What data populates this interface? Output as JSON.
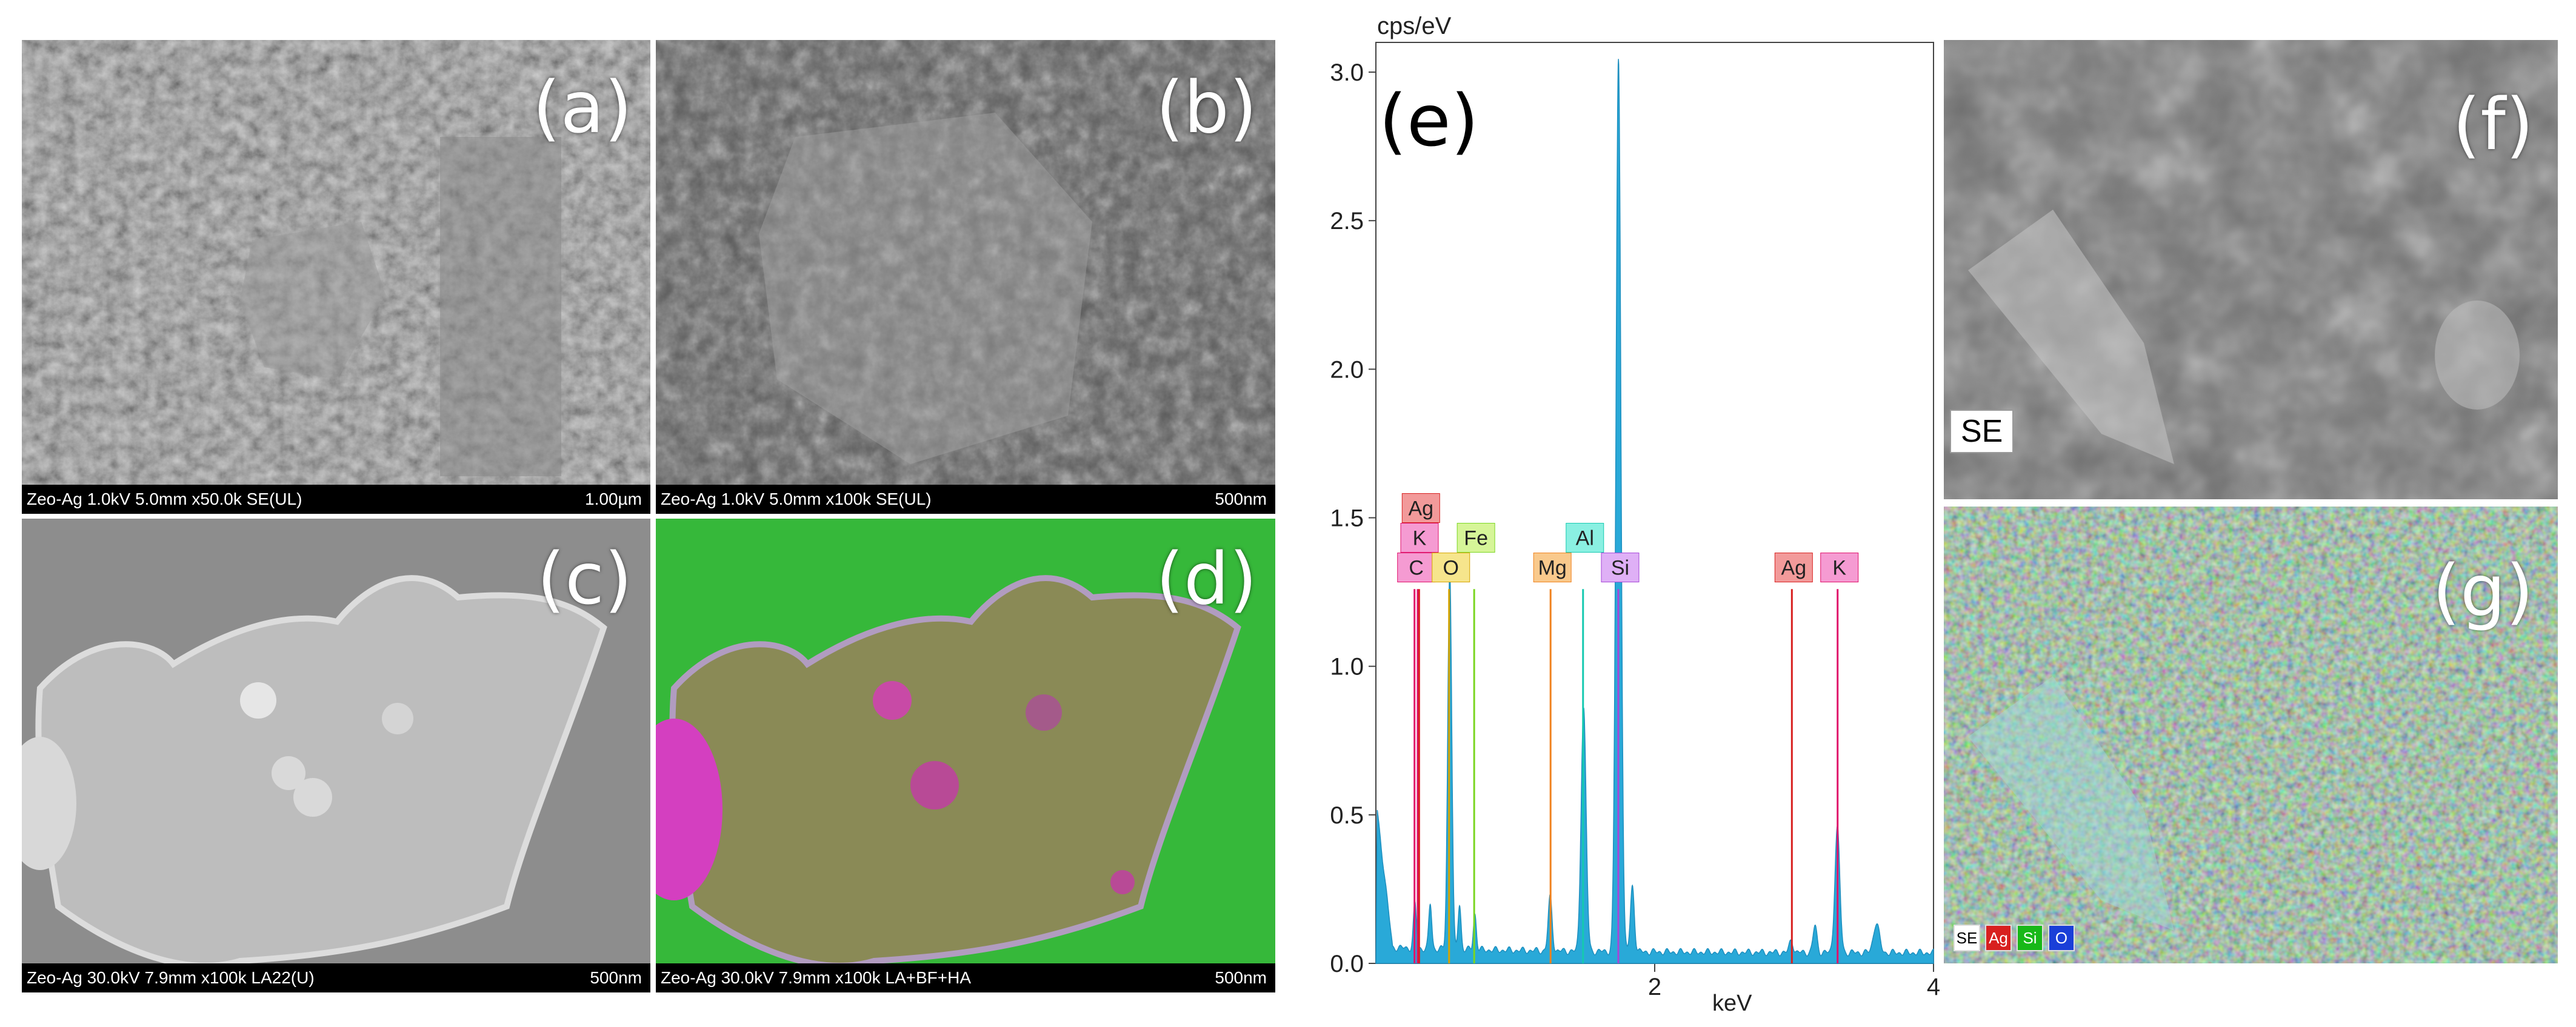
{
  "panels": {
    "a": {
      "label": "(a)",
      "info": "Zeo-Ag 1.0kV 5.0mm x50.0k SE(UL)",
      "scale": "1.00µm"
    },
    "b": {
      "label": "(b)",
      "info": "Zeo-Ag 1.0kV 5.0mm x100k SE(UL)",
      "scale": "500nm"
    },
    "c": {
      "label": "(c)",
      "info": "Zeo-Ag 30.0kV 7.9mm x100k LA22(U)",
      "scale": "500nm"
    },
    "d": {
      "label": "(d)",
      "info": "Zeo-Ag 30.0kV 7.9mm x100k LA+BF+HA",
      "scale": "500nm"
    },
    "e": {
      "label": "(e)"
    },
    "f": {
      "label": "(f)",
      "tag": "SE"
    },
    "g": {
      "label": "(g)",
      "legend": [
        {
          "text": "SE",
          "color": "#ffffff",
          "fg": "#000000"
        },
        {
          "text": "Ag",
          "color": "#d8201f",
          "fg": "#ffffff"
        },
        {
          "text": "Si",
          "color": "#18b818",
          "fg": "#ffffff"
        },
        {
          "text": "O",
          "color": "#1a3fd8",
          "fg": "#ffffff"
        }
      ]
    }
  },
  "chart_data": {
    "type": "line",
    "title": "",
    "xlabel": "keV",
    "ylabel": "cps/eV",
    "xlim": [
      0,
      4.0
    ],
    "ylim": [
      0,
      3.1
    ],
    "xticks": [
      2,
      4
    ],
    "yticks": [
      0.0,
      0.5,
      1.0,
      1.5,
      2.0,
      2.5,
      3.0
    ],
    "ytick_labels": [
      "0.0",
      "0.5",
      "1.0",
      "1.5",
      "2.0",
      "2.5",
      "3.0"
    ],
    "fill_color": "#29a9d8",
    "peaks": [
      {
        "x": 0.28,
        "y": 0.15,
        "w": 0.015
      },
      {
        "x": 0.39,
        "y": 0.15,
        "w": 0.015
      },
      {
        "x": 0.53,
        "y": 1.28,
        "w": 0.02
      },
      {
        "x": 0.6,
        "y": 0.15,
        "w": 0.015
      },
      {
        "x": 0.71,
        "y": 0.12,
        "w": 0.015
      },
      {
        "x": 1.25,
        "y": 0.18,
        "w": 0.02
      },
      {
        "x": 1.49,
        "y": 0.82,
        "w": 0.025
      },
      {
        "x": 1.74,
        "y": 3.0,
        "w": 0.025
      },
      {
        "x": 1.84,
        "y": 0.22,
        "w": 0.02
      },
      {
        "x": 2.98,
        "y": 0.04,
        "w": 0.02
      },
      {
        "x": 3.15,
        "y": 0.09,
        "w": 0.02
      },
      {
        "x": 3.31,
        "y": 0.42,
        "w": 0.025
      },
      {
        "x": 3.59,
        "y": 0.1,
        "w": 0.03
      }
    ],
    "element_markers": [
      {
        "element": "C",
        "x": 0.277,
        "height": 1.26,
        "color": "#e0106a",
        "box": "#f59bd2",
        "row": 0
      },
      {
        "element": "K",
        "x": 0.3,
        "height": 1.26,
        "color": "#e0106a",
        "box": "#f59bd2",
        "row": 1
      },
      {
        "element": "Ag",
        "x": 0.31,
        "height": 1.26,
        "color": "#d8201f",
        "box": "#f29a9a",
        "row": 2
      },
      {
        "element": "O",
        "x": 0.525,
        "height": 1.26,
        "color": "#d6a400",
        "box": "#f6e58c",
        "row": 0
      },
      {
        "element": "Fe",
        "x": 0.705,
        "height": 1.26,
        "color": "#7ad620",
        "box": "#d6f598",
        "row": 1
      },
      {
        "element": "Mg",
        "x": 1.253,
        "height": 1.26,
        "color": "#f0821e",
        "box": "#f9c98c",
        "row": 0
      },
      {
        "element": "Al",
        "x": 1.486,
        "height": 1.26,
        "color": "#15c9b0",
        "box": "#8af0e2",
        "row": 1
      },
      {
        "element": "Si",
        "x": 1.739,
        "height": 1.26,
        "color": "#a646d8",
        "box": "#dfb0f6",
        "row": 0
      },
      {
        "element": "Ag",
        "x": 2.984,
        "height": 1.26,
        "color": "#d8201f",
        "box": "#f29a9a",
        "row": 0
      },
      {
        "element": "K",
        "x": 3.312,
        "height": 1.26,
        "color": "#e0106a",
        "box": "#f59bd2",
        "row": 0
      }
    ]
  }
}
